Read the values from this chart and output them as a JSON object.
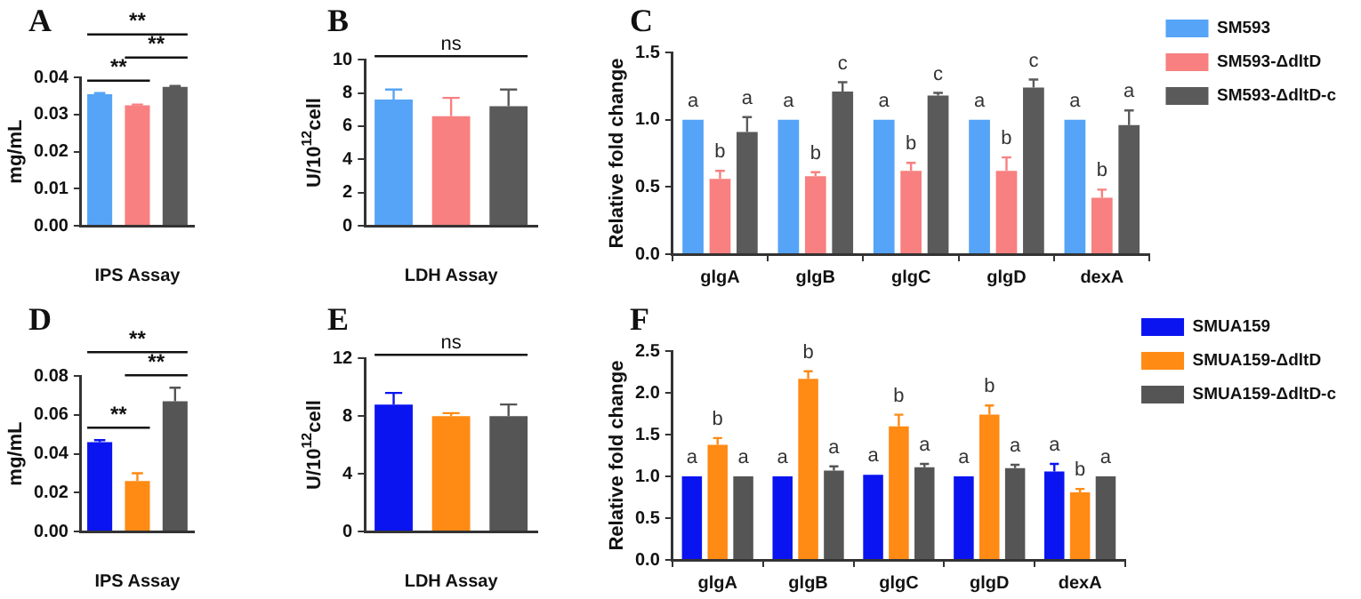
{
  "chart_data": [
    {
      "type": "bar",
      "title": "A",
      "xlabel": "IPS Assay",
      "ylabel": "mg/mL",
      "categories": [
        null,
        null,
        null
      ],
      "values": [
        0.0355,
        0.0325,
        0.0375
      ],
      "colors": [
        "#55a4f7",
        "#f88080",
        "#5a5a5a"
      ],
      "errors": [
        [
          0.0355,
          0.0358
        ],
        [
          0.0325,
          0.0327
        ],
        [
          0.0375,
          0.0377
        ]
      ],
      "ylim": [
        0,
        0.04
      ],
      "yticks": [
        {
          "value": 0,
          "label": "0.00"
        },
        {
          "value": 0.01,
          "label": "0.01"
        },
        {
          "value": 0.02,
          "label": "0.02"
        },
        {
          "value": 0.03,
          "label": "0.03"
        },
        {
          "value": 0.04,
          "label": "0.04"
        }
      ],
      "annotations": [
        "**",
        "**",
        "**"
      ]
    },
    {
      "type": "bar",
      "title": "B",
      "xlabel": "LDH Assay",
      "ylabel": "U/10$^{12}$cell",
      "categories": [
        null,
        null,
        null
      ],
      "values": [
        7.6,
        6.6,
        7.2
      ],
      "colors": [
        "#55a4f7",
        "#f88080",
        "#5a5a5a"
      ],
      "errors": [
        [
          7.6,
          8.2
        ],
        [
          6.6,
          7.7
        ],
        [
          7.2,
          8.2
        ]
      ],
      "ylim": [
        0,
        10
      ],
      "yticks": [
        0,
        2,
        4,
        6,
        8,
        10
      ],
      "annotations": [
        "ns"
      ]
    },
    {
      "type": "bar",
      "title": "C",
      "ylabel": "Relative fold change",
      "categories": [
        "glgA",
        "glgB",
        "glgC",
        "glgD",
        "dexA"
      ],
      "legend": "right",
      "ylim": [
        0,
        1.5
      ],
      "yticks": [
        {
          "value": 0,
          "label": "0.0"
        },
        {
          "value": 0.5,
          "label": "0.5"
        },
        {
          "value": 1,
          "label": "1.0"
        },
        {
          "value": 1.5,
          "label": "1.5"
        }
      ],
      "series": [
        {
          "name": "SM593",
          "color": "#55a4f7",
          "values": [
            1,
            1,
            1,
            1,
            1
          ],
          "value_labels": [
            "a",
            "a",
            "a",
            "a",
            "a"
          ]
        },
        {
          "name": "SM593-ΔdltD",
          "color": "#f88080",
          "values": [
            0.56,
            0.58,
            0.62,
            0.62,
            0.42
          ],
          "errors": [
            [
              0.56,
              0.62
            ],
            [
              0.58,
              0.61
            ],
            [
              0.62,
              0.68
            ],
            [
              0.62,
              0.72
            ],
            [
              0.42,
              0.48
            ]
          ],
          "value_labels": [
            "b",
            "b",
            "b",
            "b",
            "b"
          ]
        },
        {
          "name": "SM593-ΔdltD-c",
          "color": "#5a5a5a",
          "values": [
            0.91,
            1.21,
            1.18,
            1.24,
            0.96
          ],
          "errors": [
            [
              0.91,
              1.02
            ],
            [
              1.21,
              1.28
            ],
            [
              1.18,
              1.2
            ],
            [
              1.24,
              1.3
            ],
            [
              0.96,
              1.07
            ]
          ],
          "value_labels": [
            "a",
            "c",
            "c",
            "c",
            "a"
          ]
        }
      ]
    },
    {
      "type": "bar",
      "title": "D",
      "xlabel": "IPS Assay",
      "ylabel": "mg/mL",
      "categories": [
        null,
        null,
        null
      ],
      "values": [
        0.046,
        0.026,
        0.067
      ],
      "colors": [
        "#0a14f0",
        "#ff8a14",
        "#555555"
      ],
      "errors": [
        [
          0.046,
          0.047
        ],
        [
          0.026,
          0.03
        ],
        [
          0.067,
          0.074
        ]
      ],
      "ylim": [
        0,
        0.08
      ],
      "yticks": [
        {
          "value": 0,
          "label": "0.00"
        },
        {
          "value": 0.02,
          "label": "0.02"
        },
        {
          "value": 0.04,
          "label": "0.04"
        },
        {
          "value": 0.06,
          "label": "0.06"
        },
        {
          "value": 0.08,
          "label": "0.08"
        }
      ],
      "annotations": [
        "**",
        "**",
        "**"
      ]
    },
    {
      "type": "bar",
      "title": "E",
      "xlabel": "LDH Assay",
      "ylabel": "U/10$^{12}$cell",
      "categories": [
        null,
        null,
        null
      ],
      "values": [
        8.8,
        8,
        8
      ],
      "colors": [
        "#0a14f0",
        "#ff8a14",
        "#555555"
      ],
      "errors": [
        [
          8.8,
          9.6
        ],
        [
          8,
          8.2
        ],
        [
          8,
          8.8
        ]
      ],
      "ylim": [
        0,
        12
      ],
      "yticks": [
        0,
        4,
        8,
        12
      ],
      "annotations": [
        "ns"
      ]
    },
    {
      "type": "bar",
      "title": "F",
      "ylabel": "Relative fold change",
      "categories": [
        "glgA",
        "glgB",
        "glgC",
        "glgD",
        "dexA"
      ],
      "legend": "right",
      "ylim": [
        0,
        2.5
      ],
      "yticks": [
        {
          "value": 0,
          "label": "0.0"
        },
        {
          "value": 0.5,
          "label": "0.5"
        },
        {
          "value": 1,
          "label": "1.0"
        },
        {
          "value": 1.5,
          "label": "1.5"
        },
        {
          "value": 2,
          "label": "2.0"
        },
        {
          "value": 2.5,
          "label": "2.5"
        }
      ],
      "series": [
        {
          "name": "SMUA159",
          "color": "#0a14f0",
          "values": [
            1,
            1,
            1.02,
            1,
            1.06
          ],
          "errors": [
            null,
            null,
            null,
            null,
            [
              1.06,
              1.15
            ]
          ],
          "value_labels": [
            "a",
            "a",
            "a",
            "a",
            "a"
          ]
        },
        {
          "name": "SMUA159-ΔdltD",
          "color": "#ff8a14",
          "values": [
            1.38,
            2.17,
            1.6,
            1.74,
            0.81
          ],
          "errors": [
            [
              1.38,
              1.46
            ],
            [
              2.17,
              2.26
            ],
            [
              1.6,
              1.74
            ],
            [
              1.74,
              1.85
            ],
            [
              0.81,
              0.85
            ]
          ],
          "value_labels": [
            "b",
            "b",
            "b",
            "b",
            "b"
          ]
        },
        {
          "name": "SMUA159-ΔdltD-c",
          "color": "#555555",
          "values": [
            1,
            1.07,
            1.11,
            1.1,
            1
          ],
          "errors": [
            null,
            [
              1.07,
              1.12
            ],
            [
              1.11,
              1.15
            ],
            [
              1.1,
              1.14
            ],
            null
          ],
          "value_labels": [
            "a",
            "a",
            "a",
            "a",
            "a"
          ]
        }
      ]
    }
  ]
}
